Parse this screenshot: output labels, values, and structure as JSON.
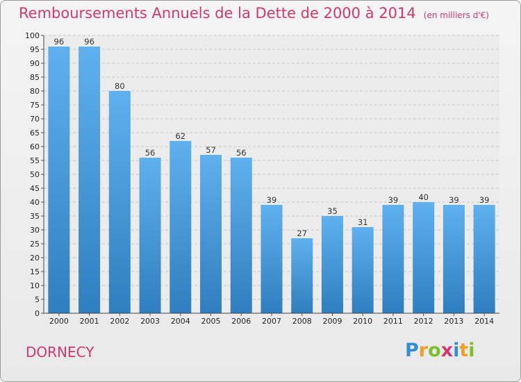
{
  "chart_data": {
    "type": "bar",
    "title": "Remboursements Annuels de la Dette de 2000 à 2014",
    "unit_note": "(en milliers d'€)",
    "categories": [
      "2000",
      "2001",
      "2002",
      "2003",
      "2004",
      "2005",
      "2006",
      "2007",
      "2008",
      "2009",
      "2010",
      "2011",
      "2012",
      "2013",
      "2014"
    ],
    "values": [
      96,
      96,
      80,
      56,
      62,
      57,
      56,
      39,
      27,
      35,
      31,
      39,
      40,
      39,
      39
    ],
    "ylim": [
      0,
      100
    ],
    "ytick_step": 5,
    "xlabel": "",
    "ylabel": "",
    "grid": true
  },
  "commune": "DORNECY",
  "logo": {
    "letters": [
      "P",
      "r",
      "o",
      "x",
      "i",
      "t",
      "i"
    ],
    "colors": [
      "#2f8fd6",
      "#f0a020",
      "#7bbf2a",
      "#d2386c",
      "#2f8fd6",
      "#f0a020",
      "#7bbf2a"
    ]
  },
  "colors": {
    "title": "#d2386c",
    "bar_top": "#5fb0ee",
    "bar_bottom": "#2f7fc0",
    "grid": "#c8c8c8"
  }
}
